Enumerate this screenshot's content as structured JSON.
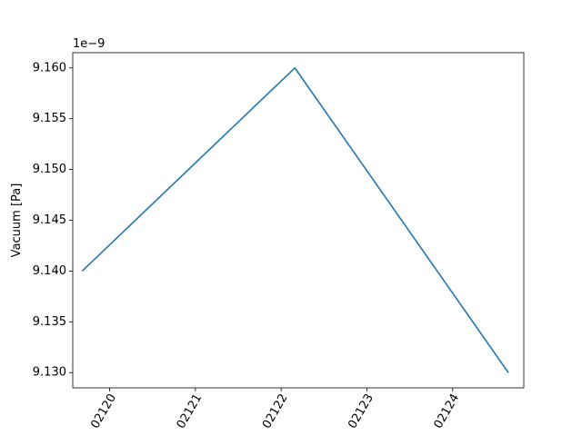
{
  "chart_data": {
    "type": "line",
    "title": "",
    "xlabel": "",
    "ylabel": "Vacuum [Pa]",
    "y_offset_text": "1e−9",
    "x_tick_labels": [
      "02120",
      "02121",
      "02122",
      "02123",
      "02124"
    ],
    "x_tick_values": [
      2120,
      2121,
      2122,
      2123,
      2124
    ],
    "y_tick_labels": [
      "9.130",
      "9.135",
      "9.140",
      "9.145",
      "9.150",
      "9.155",
      "9.160"
    ],
    "y_tick_values": [
      9.13,
      9.135,
      9.14,
      9.145,
      9.15,
      9.155,
      9.16
    ],
    "xlim": [
      2119.57,
      2124.83
    ],
    "ylim": [
      9.1285,
      9.1615
    ],
    "grid": false,
    "series": [
      {
        "x": [
          2119.68,
          2122.16,
          2124.65
        ],
        "y": [
          9.14,
          9.16,
          9.13
        ],
        "color": "#1f77b4"
      }
    ]
  }
}
